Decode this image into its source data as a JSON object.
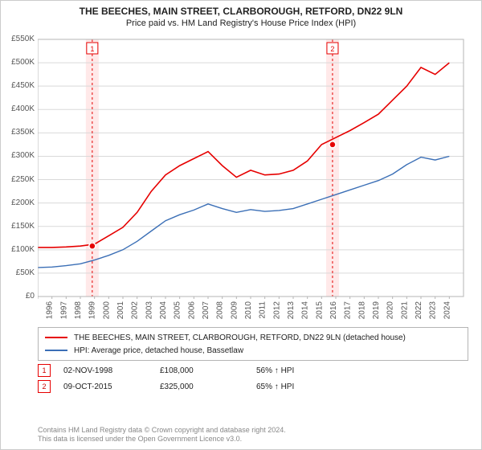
{
  "title_line1": "THE BEECHES, MAIN STREET, CLARBOROUGH, RETFORD, DN22 9LN",
  "title_line2": "Price paid vs. HM Land Registry's House Price Index (HPI)",
  "chart": {
    "type": "line",
    "background_color": "#ffffff",
    "plot_border_color": "#b5b5b5",
    "grid_color": "#d9d9d9",
    "axis_text_color": "#555555",
    "axis_fontsize": 10,
    "x_years": [
      1995,
      1996,
      1997,
      1998,
      1999,
      2000,
      2001,
      2002,
      2003,
      2004,
      2005,
      2006,
      2007,
      2008,
      2009,
      2010,
      2011,
      2012,
      2013,
      2014,
      2015,
      2016,
      2017,
      2018,
      2019,
      2020,
      2021,
      2022,
      2023,
      2024
    ],
    "xlim": [
      1995,
      2025
    ],
    "ylim": [
      0,
      550000
    ],
    "ytick_step": 50000,
    "ytick_labels": [
      "£0",
      "£50K",
      "£100K",
      "£150K",
      "£200K",
      "£250K",
      "£300K",
      "£350K",
      "£400K",
      "£450K",
      "£500K",
      "£550K"
    ],
    "series": [
      {
        "name": "price_paid",
        "label": "THE BEECHES, MAIN STREET, CLARBOROUGH, RETFORD, DN22 9LN (detached house)",
        "color": "#e60000",
        "line_width": 1.6,
        "data": [
          105000,
          105000,
          106000,
          108000,
          112000,
          130000,
          148000,
          180000,
          225000,
          260000,
          280000,
          295000,
          310000,
          280000,
          255000,
          270000,
          260000,
          262000,
          270000,
          290000,
          325000,
          340000,
          355000,
          372000,
          390000,
          420000,
          450000,
          490000,
          475000,
          500000
        ]
      },
      {
        "name": "hpi",
        "label": "HPI: Average price, detached house, Bassetlaw",
        "color": "#3b6fb6",
        "line_width": 1.4,
        "data": [
          62000,
          63000,
          66000,
          70000,
          78000,
          88000,
          100000,
          118000,
          140000,
          162000,
          175000,
          185000,
          198000,
          188000,
          180000,
          186000,
          182000,
          184000,
          188000,
          198000,
          208000,
          218000,
          228000,
          238000,
          248000,
          262000,
          282000,
          298000,
          292000,
          300000
        ]
      }
    ],
    "price_markers": [
      {
        "index": 1,
        "year": 1998.84,
        "value": 108000,
        "date_label": "02-NOV-1998",
        "price_label": "£108,000",
        "hpi_label": "56% ↑ HPI",
        "shade_color": "#ffe9e9",
        "dash_color": "#e60000"
      },
      {
        "index": 2,
        "year": 2015.77,
        "value": 325000,
        "date_label": "09-OCT-2015",
        "price_label": "£325,000",
        "hpi_label": "65% ↑ HPI",
        "shade_color": "#ffe9e9",
        "dash_color": "#e60000"
      }
    ],
    "marker_dot_fill": "#e60000",
    "marker_dot_stroke": "#ffffff"
  },
  "legend": {
    "border_color": "#b5b5b5"
  },
  "footnote_line1": "Contains HM Land Registry data © Crown copyright and database right 2024.",
  "footnote_line2": "This data is licensed under the Open Government Licence v3.0."
}
